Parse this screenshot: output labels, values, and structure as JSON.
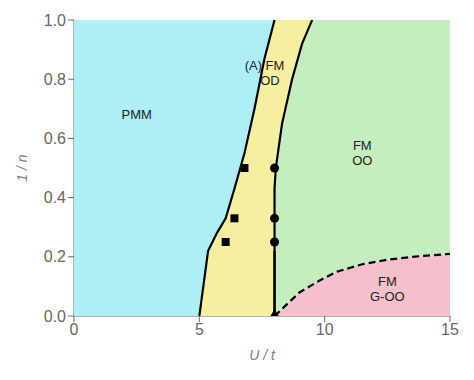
{
  "chart_data": {
    "type": "line",
    "xlabel": "U / t",
    "ylabel": "1 / n",
    "xlim": [
      0,
      15
    ],
    "ylim": [
      0.0,
      1.0
    ],
    "xticks": [
      0,
      5,
      10,
      15
    ],
    "yticks": [
      {
        "value": 0.0,
        "label": "0.0"
      },
      0.2,
      0.4,
      0.6,
      0.8,
      {
        "value": 1.0,
        "label": "1.0"
      }
    ],
    "grid": false,
    "series": [
      {
        "type": "area",
        "color": "#aeeef5",
        "x": [
          0.0,
          5.0,
          5.35,
          5.7,
          6.05,
          6.4,
          6.8,
          7.2,
          7.6,
          8.0,
          0.0
        ],
        "values": [
          0.0,
          0.0,
          0.22,
          0.28,
          0.33,
          0.43,
          0.55,
          0.7,
          0.87,
          1.0,
          1.0
        ]
      },
      {
        "type": "area",
        "color": "#f5c0cc",
        "x": [
          8.0,
          8.0,
          8.5,
          9.0,
          9.8,
          10.5,
          11.5,
          12.5,
          13.5,
          15.0,
          15.0,
          8.0
        ],
        "values": [
          0.0,
          0.0,
          0.04,
          0.08,
          0.12,
          0.15,
          0.175,
          0.19,
          0.2,
          0.21,
          0.0,
          0.0
        ]
      },
      {
        "type": "area",
        "color": "#c5eec0",
        "x": [
          8.0,
          8.0,
          8.0,
          8.0,
          8.05,
          8.3,
          8.7,
          9.1,
          9.5,
          15.0,
          15.0,
          15.0,
          13.5,
          12.5,
          11.5,
          10.5,
          9.8,
          9.0,
          8.5,
          8.0
        ],
        "values": [
          0.0,
          0.22,
          0.33,
          0.43,
          0.5,
          0.65,
          0.8,
          0.92,
          1.0,
          1.0,
          0.0,
          0.21,
          0.2,
          0.19,
          0.175,
          0.15,
          0.12,
          0.08,
          0.04,
          0.0
        ]
      },
      {
        "type": "area",
        "color": "#f5f0a0",
        "x": [
          5.0,
          5.35,
          5.7,
          6.05,
          6.4,
          6.8,
          7.2,
          7.6,
          8.0,
          9.5,
          9.1,
          8.7,
          8.3,
          8.05,
          8.0,
          8.0,
          8.0,
          8.0
        ],
        "values": [
          0.0,
          0.22,
          0.28,
          0.33,
          0.43,
          0.55,
          0.7,
          0.87,
          1.0,
          1.0,
          0.92,
          0.8,
          0.65,
          0.5,
          0.43,
          0.33,
          0.22,
          0.0
        ]
      },
      {
        "type": "line",
        "color": "#000000",
        "line_style": "solid",
        "x": [
          5.0,
          5.35,
          5.7,
          6.05,
          6.4,
          6.8,
          7.2,
          7.6,
          8.0
        ],
        "values": [
          0.0,
          0.22,
          0.28,
          0.33,
          0.43,
          0.55,
          0.7,
          0.87,
          1.0
        ]
      },
      {
        "type": "line",
        "color": "#000000",
        "line_style": "solid",
        "x": [
          8.0,
          8.0,
          8.0,
          8.0,
          8.05,
          8.3,
          8.7,
          9.1,
          9.5
        ],
        "values": [
          0.0,
          0.22,
          0.33,
          0.43,
          0.5,
          0.65,
          0.8,
          0.92,
          1.0
        ]
      },
      {
        "type": "line",
        "color": "#000000",
        "line_style": "dashed",
        "x": [
          8.0,
          8.5,
          9.0,
          9.8,
          10.5,
          11.5,
          12.5,
          13.5,
          15.0
        ],
        "values": [
          0.0,
          0.04,
          0.08,
          0.12,
          0.15,
          0.175,
          0.19,
          0.2,
          0.21
        ]
      },
      {
        "type": "line",
        "color": "#000000",
        "line_style": "solid",
        "x": [
          8.0,
          8.0
        ],
        "values": [
          0.0,
          0.22
        ]
      },
      {
        "type": "scatter",
        "color": "#000000",
        "marker": "square",
        "x": [
          6.05,
          6.4,
          6.8
        ],
        "values": [
          0.25,
          0.33,
          0.5
        ]
      },
      {
        "type": "scatter",
        "color": "#000000",
        "marker": "circle",
        "x": [
          8.0,
          8.0,
          8.0
        ],
        "values": [
          0.25,
          0.33,
          0.5
        ]
      },
      {
        "type": "scatter",
        "color": "#000000",
        "marker": "triangle",
        "x": [
          8.0
        ],
        "values": [
          0.0
        ]
      }
    ],
    "annotations": [
      {
        "text": "PMM",
        "x": 2.5,
        "y": 0.68
      },
      {
        "text": "(A) FM\n   OD",
        "x": 7.6,
        "y": 0.82
      },
      {
        "text": "FM\nOO",
        "x": 11.5,
        "y": 0.55
      },
      {
        "text": "FM\nG-OO",
        "x": 12.5,
        "y": 0.09
      }
    ]
  }
}
